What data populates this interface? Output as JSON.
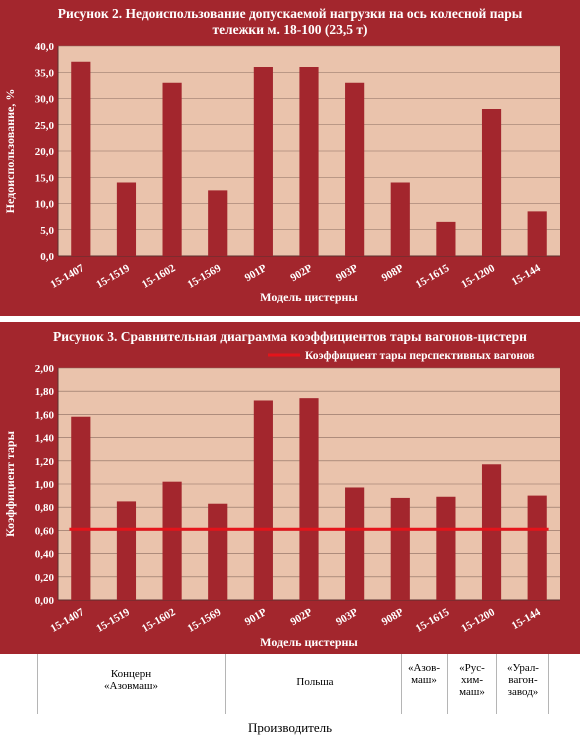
{
  "chart_data": [
    {
      "type": "bar",
      "title": "Рисунок 2. Недоиспользование допускаемой нагрузки на ось колесной пары тележки м. 18-100 (23,5 т)",
      "title_line1": "Рисунок 2. Недоиспользование допускаемой нагрузки на ось колесной пары",
      "title_line2": "тележки м. 18-100 (23,5 т)",
      "xlabel": "Модель цистерны",
      "ylabel": "Недоиспользование, %",
      "categories": [
        "15-1407",
        "15-1519",
        "15-1602",
        "15-1569",
        "901Р",
        "902Р",
        "903Р",
        "908Р",
        "15-1615",
        "15-1200",
        "15-144"
      ],
      "values": [
        37,
        14,
        33,
        12.5,
        36,
        36,
        33,
        14,
        6.5,
        28,
        8.5
      ],
      "ylim": [
        0,
        40
      ],
      "yticks": [
        "0,0",
        "5,0",
        "10,0",
        "15,0",
        "20,0",
        "25,0",
        "30,0",
        "35,0",
        "40,0"
      ],
      "grid": true,
      "colors": {
        "bar": "#a3262d",
        "plot_bg": "#eac3ac",
        "panel_bg": "#a3262d",
        "grid": "#8a6d60"
      }
    },
    {
      "type": "bar",
      "title": "Рисунок 3. Сравнительная диаграмма коэффициентов тары вагонов-цистерн",
      "xlabel": "Модель цистерны",
      "ylabel": "Коэффициент тары",
      "categories": [
        "15-1407",
        "15-1519",
        "15-1602",
        "15-1569",
        "901Р",
        "902Р",
        "903Р",
        "908Р",
        "15-1615",
        "15-1200",
        "15-144"
      ],
      "values": [
        1.58,
        0.85,
        1.02,
        0.83,
        1.72,
        1.74,
        0.97,
        0.88,
        0.89,
        1.17,
        0.9
      ],
      "reference_line": {
        "name": "Коэффициент тары перспективных вагонов",
        "value": 0.61
      },
      "ylim": [
        0,
        2
      ],
      "yticks": [
        "0,00",
        "0,20",
        "0,40",
        "0,60",
        "0,80",
        "1,00",
        "1,20",
        "1,40",
        "1,60",
        "1,80",
        "2,00"
      ],
      "legend": "top-right",
      "grid": true,
      "colors": {
        "bar": "#a3262d",
        "plot_bg": "#eac3ac",
        "panel_bg": "#a3262d",
        "reference_line": "#e5141b",
        "grid": "#8a6d60"
      }
    }
  ],
  "producers": {
    "title": "Производитель",
    "groups": [
      {
        "label": "Концерн «Азовмаш»"
      },
      {
        "label": "Польша"
      },
      {
        "label": "«Азов-маш»"
      },
      {
        "label": "«Рус-хим-маш»"
      },
      {
        "label": "«Урал-вагон-завод»"
      }
    ]
  }
}
